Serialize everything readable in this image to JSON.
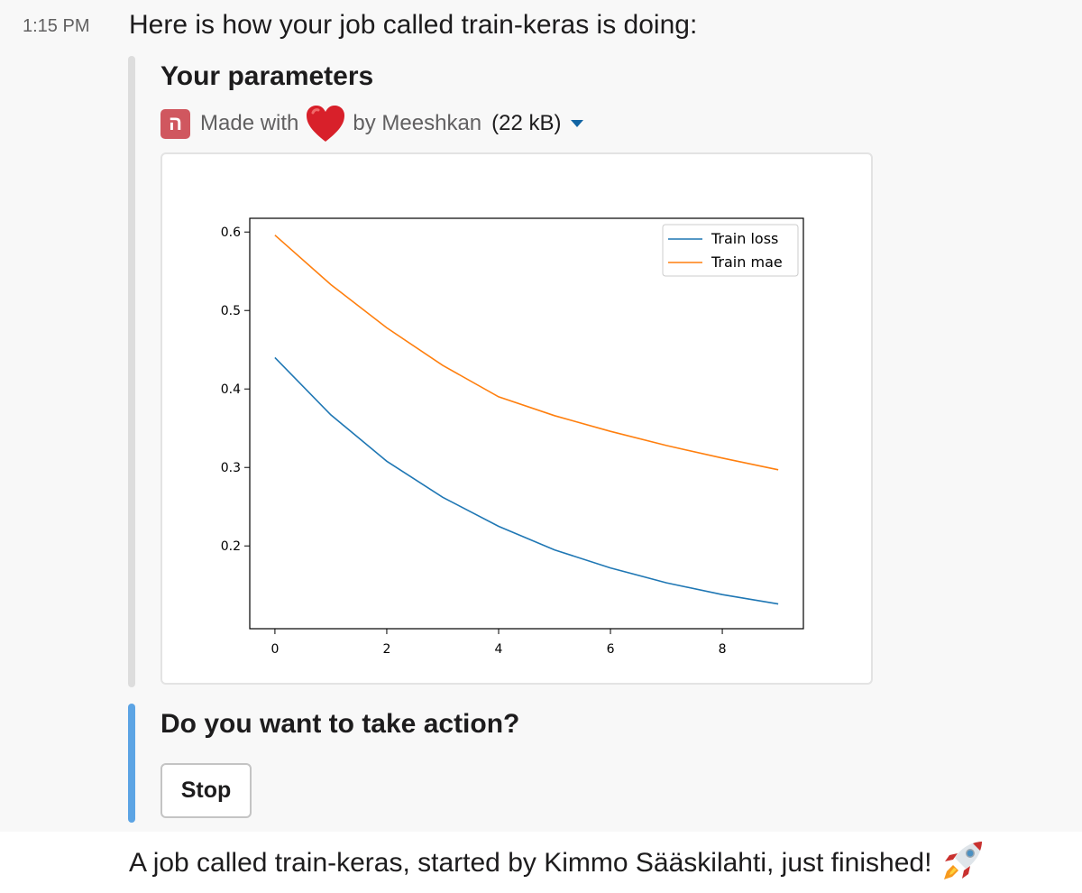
{
  "message": {
    "timestamp": "1:15 PM",
    "text": "Here is how your job called train-keras is doing:"
  },
  "attachment_params": {
    "title": "Your parameters",
    "footer": {
      "logo_glyph": "ה",
      "made_with": "Made with",
      "heart_icon": "heart-emoji",
      "by": "by Meeshkan",
      "file_size": "(22 kB)",
      "expand_icon": "caret-down-icon"
    }
  },
  "chart_data": {
    "type": "line",
    "x": [
      0,
      1,
      2,
      3,
      4,
      5,
      6,
      7,
      8,
      9
    ],
    "series": [
      {
        "name": "Train loss",
        "color": "#1f77b4",
        "values": [
          0.44,
          0.367,
          0.308,
          0.262,
          0.225,
          0.195,
          0.172,
          0.153,
          0.138,
          0.126
        ]
      },
      {
        "name": "Train mae",
        "color": "#ff7f0e",
        "values": [
          0.596,
          0.533,
          0.478,
          0.43,
          0.39,
          0.366,
          0.346,
          0.328,
          0.312,
          0.297
        ]
      }
    ],
    "xticks": [
      0,
      2,
      4,
      6,
      8
    ],
    "xtick_labels": [
      "0",
      "2",
      "4",
      "6",
      "8"
    ],
    "yticks": [
      0.2,
      0.3,
      0.4,
      0.5,
      0.6
    ],
    "ytick_labels": [
      "0.2",
      "0.3",
      "0.4",
      "0.5",
      "0.6"
    ],
    "xlim": [
      -0.45,
      9.45
    ],
    "ylim": [
      0.0945,
      0.6175
    ],
    "legend": "top-right",
    "grid": false,
    "title": "",
    "xlabel": "",
    "ylabel": ""
  },
  "attachment_action": {
    "title": "Do you want to take action?",
    "stop_label": "Stop"
  },
  "next_message": {
    "text": "A job called train-keras, started by Kimmo Sääskilahti, just finished!",
    "emoji_icon": "rocket-emoji"
  }
}
